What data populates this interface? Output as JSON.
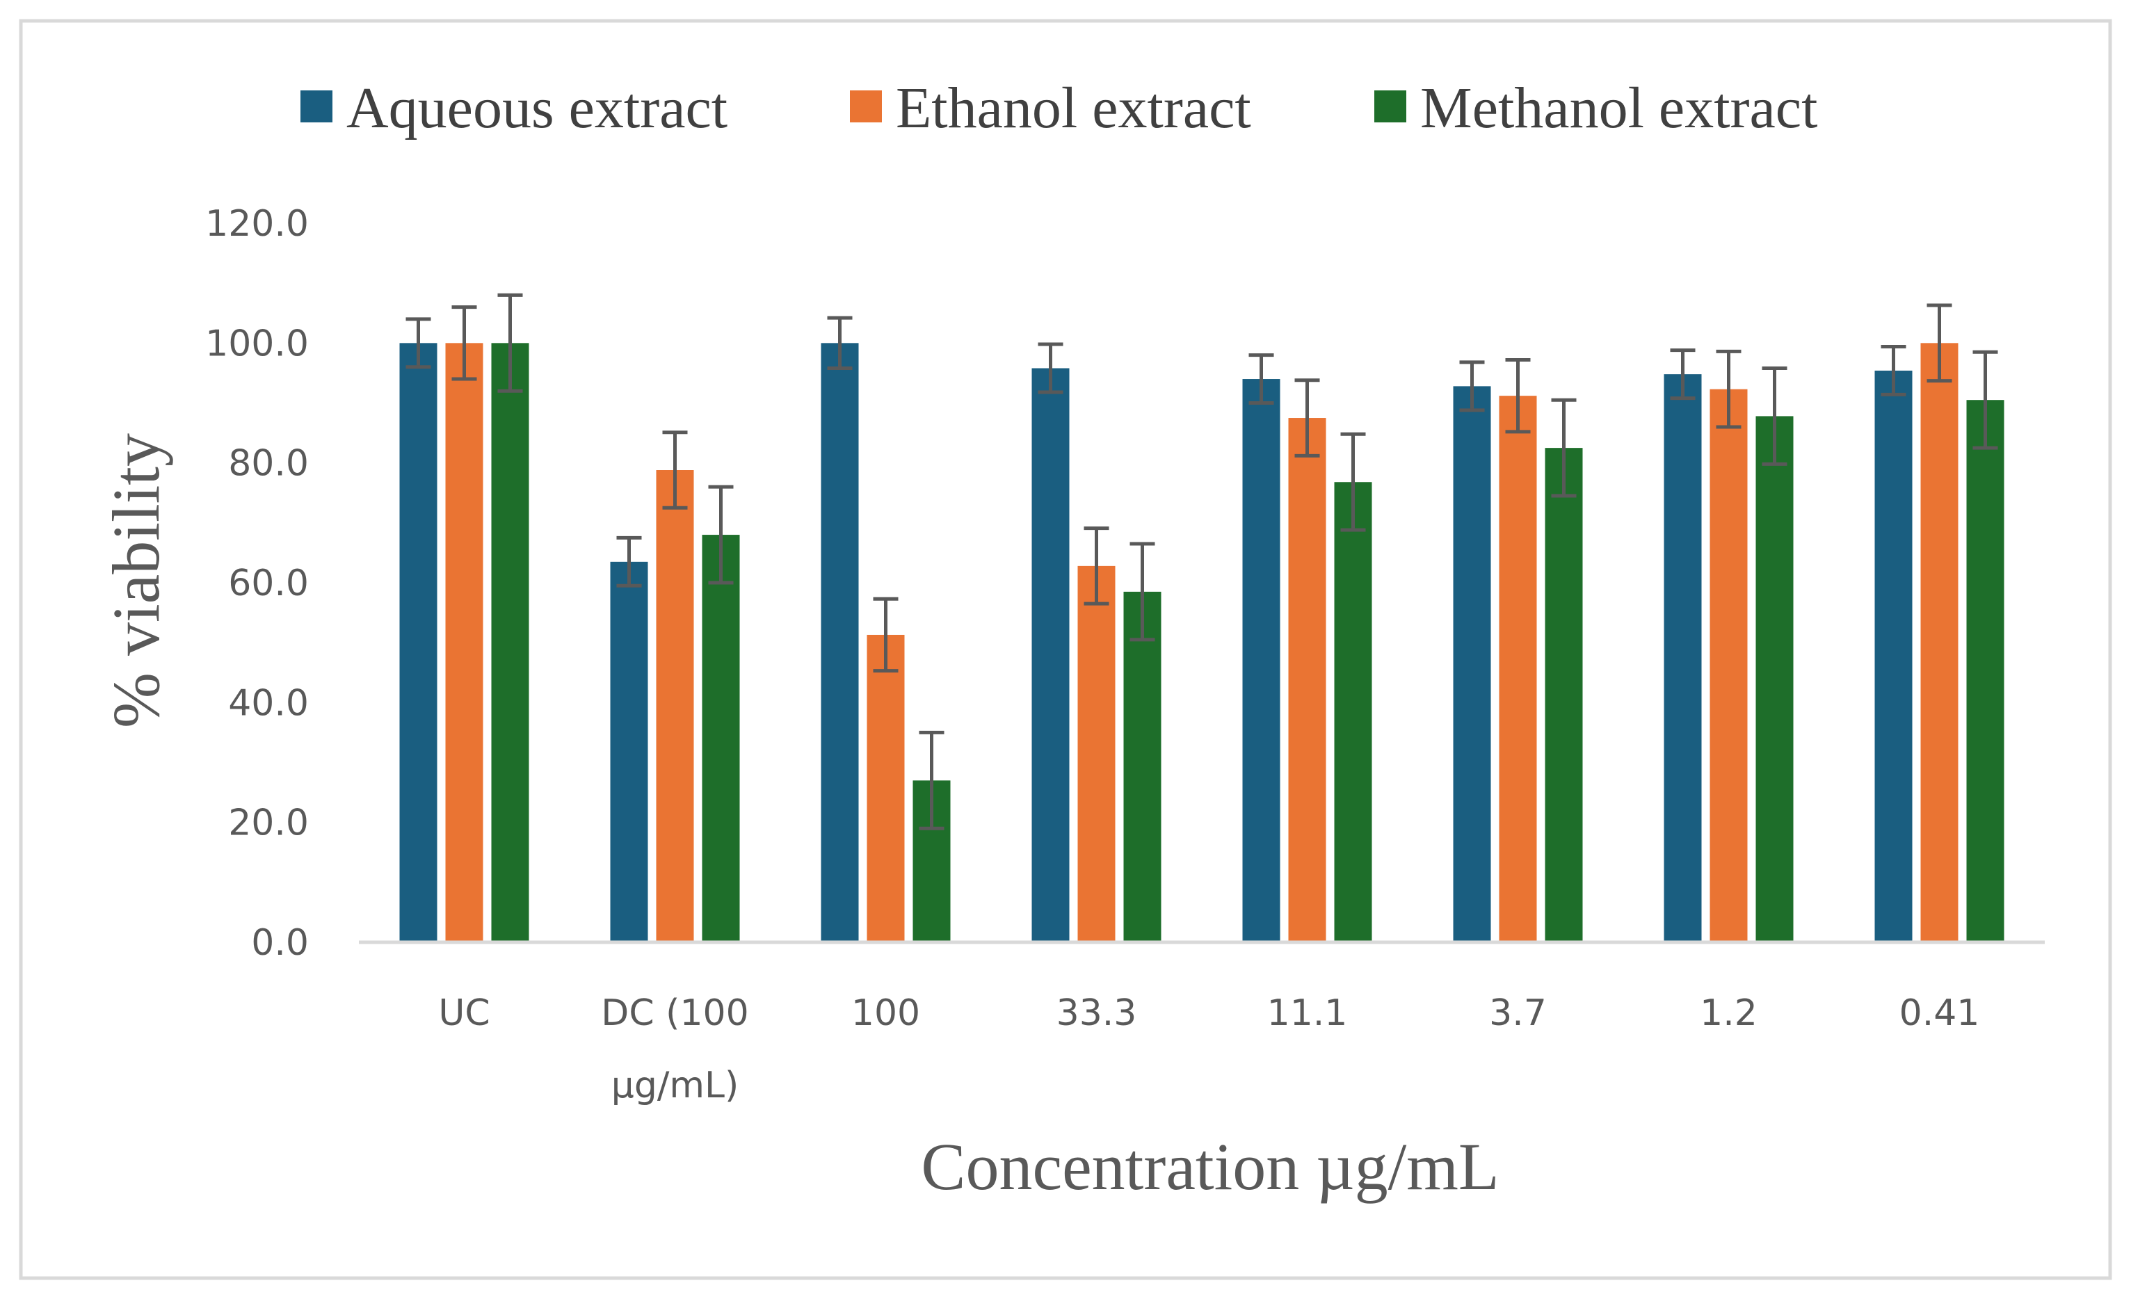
{
  "chart_data": {
    "type": "bar",
    "title": "",
    "xlabel": "Concentration µg/mL",
    "ylabel": "% viability",
    "ylim": [
      0,
      120
    ],
    "yticks": [
      0,
      20,
      40,
      60,
      80,
      100,
      120
    ],
    "ytick_labels": [
      "0.0",
      "20.0",
      "40.0",
      "60.0",
      "80.0",
      "100.0",
      "120.0"
    ],
    "grid": false,
    "legend_position": "top",
    "categories": [
      [
        "UC"
      ],
      [
        "DC (100",
        "µg/mL)"
      ],
      [
        "100"
      ],
      [
        "33.3"
      ],
      [
        "11.1"
      ],
      [
        "3.7"
      ],
      [
        "1.2"
      ],
      [
        "0.41"
      ]
    ],
    "series": [
      {
        "name": "Aqueous extract",
        "color": "#1a5e80",
        "values": [
          100.0,
          63.5,
          100.0,
          95.8,
          94.0,
          92.8,
          94.8,
          95.4
        ],
        "errors": [
          4.0,
          4.0,
          4.2,
          4.0,
          4.0,
          4.0,
          4.0,
          4.0
        ]
      },
      {
        "name": "Ethanol extract",
        "color": "#ea7433",
        "values": [
          100.0,
          78.8,
          51.3,
          62.8,
          87.5,
          91.2,
          92.3,
          100.0
        ],
        "errors": [
          6.0,
          6.3,
          6.0,
          6.3,
          6.3,
          6.0,
          6.3,
          6.3
        ]
      },
      {
        "name": "Methanol extract",
        "color": "#1e6e2a",
        "values": [
          100.0,
          68.0,
          27.0,
          58.5,
          76.8,
          82.5,
          87.8,
          90.5
        ],
        "errors": [
          8.0,
          8.0,
          8.0,
          8.0,
          8.0,
          8.0,
          8.0,
          8.0
        ]
      }
    ],
    "error_bar_color": "#595959",
    "axis_color": "#d9d9d9",
    "frame_color": "#d9d9d9"
  }
}
